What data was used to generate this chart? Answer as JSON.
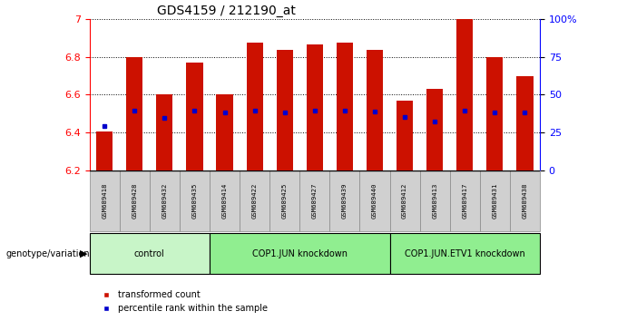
{
  "title": "GDS4159 / 212190_at",
  "samples": [
    "GSM689418",
    "GSM689428",
    "GSM689432",
    "GSM689435",
    "GSM689414",
    "GSM689422",
    "GSM689425",
    "GSM689427",
    "GSM689439",
    "GSM689440",
    "GSM689412",
    "GSM689413",
    "GSM689417",
    "GSM689431",
    "GSM689438"
  ],
  "bar_tops": [
    6.405,
    6.8,
    6.6,
    6.77,
    6.6,
    6.875,
    6.84,
    6.865,
    6.875,
    6.84,
    6.57,
    6.63,
    7.0,
    6.8,
    6.7
  ],
  "bar_bottoms": [
    6.2,
    6.2,
    6.2,
    6.2,
    6.2,
    6.2,
    6.2,
    6.2,
    6.2,
    6.2,
    6.2,
    6.2,
    6.2,
    6.2,
    6.2
  ],
  "percentile_values": [
    6.435,
    6.515,
    6.475,
    6.515,
    6.505,
    6.515,
    6.505,
    6.515,
    6.515,
    6.51,
    6.48,
    6.46,
    6.515,
    6.505,
    6.505
  ],
  "groups": [
    {
      "label": "control",
      "start": 0,
      "end": 4
    },
    {
      "label": "COP1.JUN knockdown",
      "start": 4,
      "end": 10
    },
    {
      "label": "COP1.JUN.ETV1 knockdown",
      "start": 10,
      "end": 15
    }
  ],
  "group_colors": [
    "#c8f5c8",
    "#90ee90",
    "#90ee90"
  ],
  "ylim_left": [
    6.2,
    7.0
  ],
  "ylim_right": [
    0,
    100
  ],
  "bar_color": "#cc1100",
  "percentile_color": "#0000cc",
  "yticks_left": [
    6.2,
    6.4,
    6.6,
    6.8,
    7.0
  ],
  "ytick_labels_left": [
    "6.2",
    "6.4",
    "6.6",
    "6.8",
    "7"
  ],
  "yticks_right": [
    0,
    25,
    50,
    75,
    100
  ],
  "ytick_labels_right": [
    "0",
    "25",
    "50",
    "75",
    "100%"
  ],
  "legend_items": [
    "transformed count",
    "percentile rank within the sample"
  ],
  "xlabel_left": "genotype/variation",
  "bar_width": 0.55,
  "cell_bg": "#d0d0d0"
}
